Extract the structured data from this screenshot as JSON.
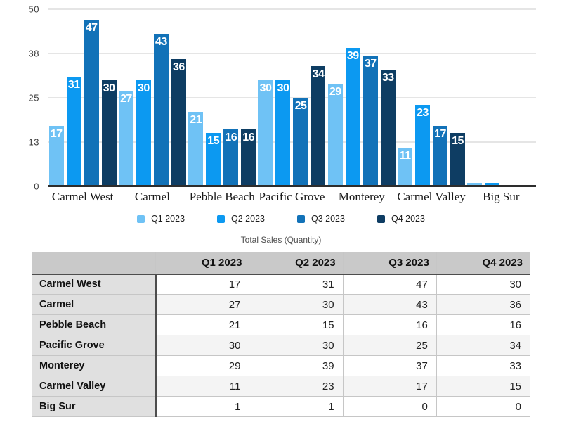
{
  "chart_data": {
    "type": "bar",
    "title": "Total Sales (Quantity)",
    "categories": [
      "Carmel West",
      "Carmel",
      "Pebble Beach",
      "Pacific Grove",
      "Monterey",
      "Carmel Valley",
      "Big Sur"
    ],
    "series": [
      {
        "name": "Q1 2023",
        "color": "#6FC2F5",
        "values": [
          17,
          27,
          21,
          30,
          29,
          11,
          1
        ]
      },
      {
        "name": "Q2 2023",
        "color": "#0C99F1",
        "values": [
          31,
          30,
          15,
          30,
          39,
          23,
          1
        ]
      },
      {
        "name": "Q3 2023",
        "color": "#1272B8",
        "values": [
          47,
          43,
          16,
          25,
          37,
          17,
          0
        ]
      },
      {
        "name": "Q4 2023",
        "color": "#0E3D63",
        "values": [
          30,
          36,
          16,
          34,
          33,
          15,
          0
        ]
      }
    ],
    "ylim": [
      0,
      50
    ],
    "y_ticks": [
      "0",
      "13",
      "25",
      "38",
      "50"
    ],
    "grid": true,
    "legend_position": "bottom",
    "bar_label_min_value": 10
  },
  "table": {
    "title": "Total Sales (Quantity)",
    "columns": [
      "",
      "Q1 2023",
      "Q2 2023",
      "Q3 2023",
      "Q4 2023"
    ],
    "rows": [
      {
        "label": "Carmel West",
        "values": [
          17,
          31,
          47,
          30
        ]
      },
      {
        "label": "Carmel",
        "values": [
          27,
          30,
          43,
          36
        ]
      },
      {
        "label": "Pebble Beach",
        "values": [
          21,
          15,
          16,
          16
        ]
      },
      {
        "label": "Pacific Grove",
        "values": [
          30,
          30,
          25,
          34
        ]
      },
      {
        "label": "Monterey",
        "values": [
          29,
          39,
          37,
          33
        ]
      },
      {
        "label": "Carmel Valley",
        "values": [
          11,
          23,
          17,
          15
        ]
      },
      {
        "label": "Big Sur",
        "values": [
          1,
          1,
          0,
          0
        ]
      }
    ]
  }
}
